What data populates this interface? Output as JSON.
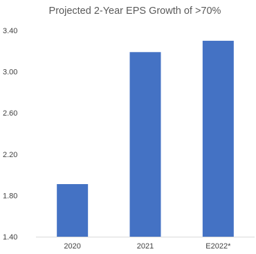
{
  "chart_data": {
    "type": "bar",
    "title": "Projected 2-Year EPS Growth of >70%",
    "xlabel": "",
    "ylabel": "",
    "categories": [
      "2020",
      "2021",
      "E2022*"
    ],
    "values": [
      1.91,
      3.19,
      3.3
    ],
    "ylim": [
      1.4,
      3.4
    ],
    "yticks": [
      "1.40",
      "1.80",
      "2.20",
      "2.60",
      "3.00",
      "3.40"
    ],
    "grid": false,
    "legend": "none",
    "bar_color": "#4472C4",
    "axis_color": "#d9d9d9"
  }
}
